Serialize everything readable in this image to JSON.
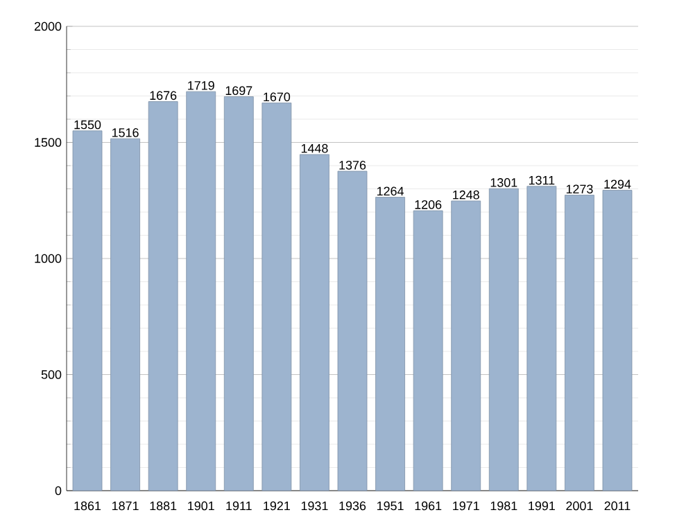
{
  "chart_data": {
    "type": "bar",
    "categories": [
      "1861",
      "1871",
      "1881",
      "1901",
      "1911",
      "1921",
      "1931",
      "1936",
      "1951",
      "1961",
      "1971",
      "1981",
      "1991",
      "2001",
      "2011"
    ],
    "values": [
      1550,
      1516,
      1676,
      1719,
      1697,
      1670,
      1448,
      1376,
      1264,
      1206,
      1248,
      1301,
      1311,
      1273,
      1294
    ],
    "color": "#9db4cf",
    "ylim": [
      0,
      2000
    ],
    "yticks": [
      0,
      500,
      1000,
      1500,
      2000
    ],
    "grid": "y",
    "data_labels": true
  }
}
